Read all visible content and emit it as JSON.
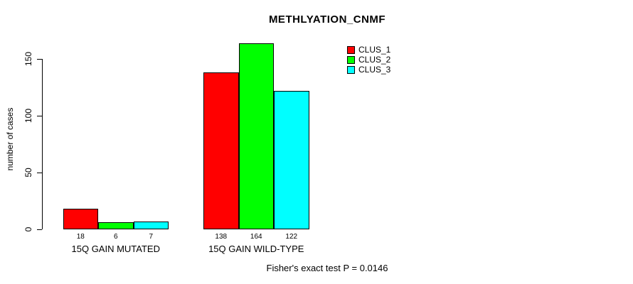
{
  "title": "METHLYATION_CNMF",
  "footer": "Fisher's exact test P = 0.0146",
  "chart_data": {
    "type": "bar",
    "title": "METHLYATION_CNMF",
    "xlabel": "",
    "ylabel": "number of cases",
    "categories": [
      "15Q GAIN MUTATED",
      "15Q GAIN WILD-TYPE"
    ],
    "series": [
      {
        "name": "CLUS_1",
        "color": "#FF0000",
        "values": [
          18,
          138
        ]
      },
      {
        "name": "CLUS_2",
        "color": "#00FF00",
        "values": [
          6,
          164
        ]
      },
      {
        "name": "CLUS_3",
        "color": "#00FFFF",
        "values": [
          7,
          122
        ]
      }
    ],
    "bar_value_labels": [
      [
        18,
        6,
        7
      ],
      [
        138,
        164,
        122
      ]
    ],
    "yticks": [
      0,
      50,
      100,
      150
    ],
    "ylim": [
      0,
      165
    ],
    "grid": false,
    "legend_position": "top-right-inside",
    "annotation": "Fisher's exact test P = 0.0146"
  },
  "legend": {
    "items": [
      {
        "label": "CLUS_1",
        "color": "#FF0000"
      },
      {
        "label": "CLUS_2",
        "color": "#00FF00"
      },
      {
        "label": "CLUS_3",
        "color": "#00FFFF"
      }
    ]
  }
}
